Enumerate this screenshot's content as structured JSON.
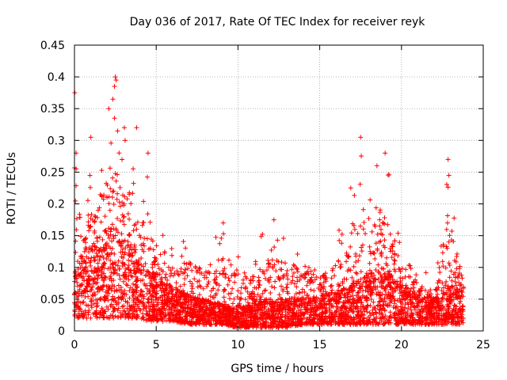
{
  "chart_data": {
    "type": "scatter",
    "title": "Day 036 of 2017, Rate Of TEC Index for receiver reyk",
    "xlabel": "GPS time / hours",
    "ylabel": "ROTI / TECUs",
    "xlim": [
      0,
      25
    ],
    "ylim": [
      0,
      0.45
    ],
    "x_ticks": [
      "0",
      "5",
      "10",
      "15",
      "20",
      "25"
    ],
    "y_ticks": [
      "0",
      "0.05",
      "0.1",
      "0.15",
      "0.2",
      "0.25",
      "0.3",
      "0.35",
      "0.4",
      "0.45"
    ],
    "x_tick_values": [
      0,
      5,
      10,
      15,
      20,
      25
    ],
    "y_tick_values": [
      0,
      0.05,
      0.1,
      0.15,
      0.2,
      0.25,
      0.3,
      0.35,
      0.4,
      0.45
    ],
    "grid": true,
    "marker": "+",
    "marker_color": "#ff0000",
    "time_range": [
      0,
      23.8
    ],
    "envelope": [
      {
        "t": 0.0,
        "floor": 0.02,
        "typical": 0.08,
        "peak": 0.375
      },
      {
        "t": 0.5,
        "floor": 0.02,
        "typical": 0.09,
        "peak": 0.21
      },
      {
        "t": 1.0,
        "floor": 0.02,
        "typical": 0.11,
        "peak": 0.27
      },
      {
        "t": 1.5,
        "floor": 0.02,
        "typical": 0.12,
        "peak": 0.3
      },
      {
        "t": 2.0,
        "floor": 0.02,
        "typical": 0.13,
        "peak": 0.35
      },
      {
        "t": 2.5,
        "floor": 0.02,
        "typical": 0.13,
        "peak": 0.4
      },
      {
        "t": 3.0,
        "floor": 0.02,
        "typical": 0.12,
        "peak": 0.31
      },
      {
        "t": 3.5,
        "floor": 0.02,
        "typical": 0.1,
        "peak": 0.32
      },
      {
        "t": 4.0,
        "floor": 0.02,
        "typical": 0.09,
        "peak": 0.24
      },
      {
        "t": 4.5,
        "floor": 0.015,
        "typical": 0.08,
        "peak": 0.28
      },
      {
        "t": 5.0,
        "floor": 0.015,
        "typical": 0.07,
        "peak": 0.2
      },
      {
        "t": 6.0,
        "floor": 0.015,
        "typical": 0.055,
        "peak": 0.13
      },
      {
        "t": 7.0,
        "floor": 0.01,
        "typical": 0.045,
        "peak": 0.155
      },
      {
        "t": 8.0,
        "floor": 0.01,
        "typical": 0.04,
        "peak": 0.14
      },
      {
        "t": 9.0,
        "floor": 0.01,
        "typical": 0.035,
        "peak": 0.17
      },
      {
        "t": 10.0,
        "floor": 0.005,
        "typical": 0.03,
        "peak": 0.14
      },
      {
        "t": 11.0,
        "floor": 0.005,
        "typical": 0.035,
        "peak": 0.13
      },
      {
        "t": 12.0,
        "floor": 0.005,
        "typical": 0.04,
        "peak": 0.175
      },
      {
        "t": 13.0,
        "floor": 0.005,
        "typical": 0.04,
        "peak": 0.15
      },
      {
        "t": 14.0,
        "floor": 0.01,
        "typical": 0.045,
        "peak": 0.155
      },
      {
        "t": 15.0,
        "floor": 0.01,
        "typical": 0.045,
        "peak": 0.12
      },
      {
        "t": 16.0,
        "floor": 0.01,
        "typical": 0.05,
        "peak": 0.15
      },
      {
        "t": 17.0,
        "floor": 0.01,
        "typical": 0.06,
        "peak": 0.225
      },
      {
        "t": 17.5,
        "floor": 0.01,
        "typical": 0.065,
        "peak": 0.305
      },
      {
        "t": 18.0,
        "floor": 0.01,
        "typical": 0.07,
        "peak": 0.21
      },
      {
        "t": 18.5,
        "floor": 0.01,
        "typical": 0.08,
        "peak": 0.27
      },
      {
        "t": 19.0,
        "floor": 0.01,
        "typical": 0.08,
        "peak": 0.28
      },
      {
        "t": 20.0,
        "floor": 0.01,
        "typical": 0.06,
        "peak": 0.15
      },
      {
        "t": 21.0,
        "floor": 0.01,
        "typical": 0.045,
        "peak": 0.11
      },
      {
        "t": 22.0,
        "floor": 0.01,
        "typical": 0.04,
        "peak": 0.08
      },
      {
        "t": 22.8,
        "floor": 0.01,
        "typical": 0.06,
        "peak": 0.27
      },
      {
        "t": 23.8,
        "floor": 0.01,
        "typical": 0.05,
        "peak": 0.11
      }
    ],
    "outliers": [
      {
        "x": 0.02,
        "y": 0.375
      },
      {
        "x": 0.1,
        "y": 0.28
      },
      {
        "x": 0.1,
        "y": 0.255
      },
      {
        "x": 1.0,
        "y": 0.305
      },
      {
        "x": 2.1,
        "y": 0.35
      },
      {
        "x": 2.35,
        "y": 0.365
      },
      {
        "x": 2.45,
        "y": 0.385
      },
      {
        "x": 2.5,
        "y": 0.4
      },
      {
        "x": 2.55,
        "y": 0.395
      },
      {
        "x": 2.45,
        "y": 0.335
      },
      {
        "x": 3.05,
        "y": 0.32
      },
      {
        "x": 3.1,
        "y": 0.3
      },
      {
        "x": 3.8,
        "y": 0.32
      },
      {
        "x": 4.5,
        "y": 0.28
      },
      {
        "x": 17.5,
        "y": 0.305
      },
      {
        "x": 18.5,
        "y": 0.26
      },
      {
        "x": 19.0,
        "y": 0.28
      },
      {
        "x": 16.9,
        "y": 0.225
      },
      {
        "x": 22.85,
        "y": 0.27
      },
      {
        "x": 22.9,
        "y": 0.245
      },
      {
        "x": 12.2,
        "y": 0.175
      },
      {
        "x": 9.1,
        "y": 0.17
      }
    ]
  }
}
